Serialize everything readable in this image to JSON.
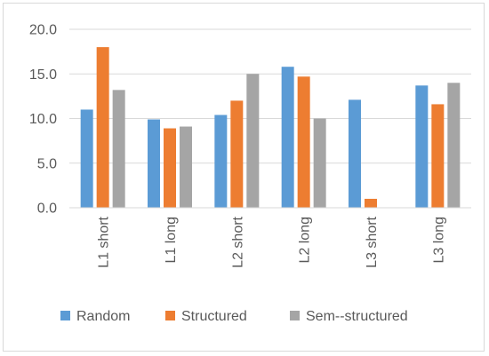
{
  "chart_data": {
    "type": "bar",
    "categories": [
      "L1 short",
      "L1 long",
      "L2 short",
      "L2 long",
      "L3 short",
      "L3 long"
    ],
    "series": [
      {
        "name": "Random",
        "color": "#5b9bd5",
        "values": [
          11.0,
          9.9,
          10.4,
          15.8,
          12.1,
          13.7
        ]
      },
      {
        "name": "Structured",
        "color": "#ed7d31",
        "values": [
          18.0,
          8.9,
          12.0,
          14.7,
          1.0,
          11.6
        ]
      },
      {
        "name": "Sem--structured",
        "color": "#a5a5a5",
        "values": [
          13.2,
          9.1,
          15.0,
          10.0,
          0.0,
          14.0
        ]
      }
    ],
    "y_ticks": [
      "0.0",
      "5.0",
      "10.0",
      "15.0",
      "20.0"
    ],
    "ylim": [
      0,
      20
    ],
    "grid": true,
    "legend_position": "bottom"
  }
}
